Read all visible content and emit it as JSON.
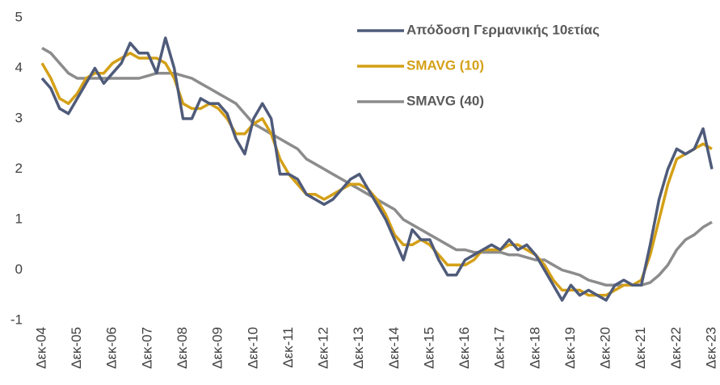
{
  "chart_data": {
    "type": "line",
    "categories": [
      "Δεκ-04",
      null,
      null,
      null,
      "Δεκ-05",
      null,
      null,
      null,
      "Δεκ-06",
      null,
      null,
      null,
      "Δεκ-07",
      null,
      null,
      null,
      "Δεκ-08",
      null,
      null,
      null,
      "Δεκ-09",
      null,
      null,
      null,
      "Δεκ-10",
      null,
      null,
      null,
      "Δεκ-11",
      null,
      null,
      null,
      "Δεκ-12",
      null,
      null,
      null,
      "Δεκ-13",
      null,
      null,
      null,
      "Δεκ-14",
      null,
      null,
      null,
      "Δεκ-15",
      null,
      null,
      null,
      "Δεκ-16",
      null,
      null,
      null,
      "Δεκ-17",
      null,
      null,
      null,
      "Δεκ-18",
      null,
      null,
      null,
      "Δεκ-19",
      null,
      null,
      null,
      "Δεκ-20",
      null,
      null,
      null,
      "Δεκ-21",
      null,
      null,
      null,
      "Δεκ-22",
      null,
      null,
      null,
      "Δεκ-23"
    ],
    "series": [
      {
        "name": "Απόδοση Γερμανικής 10ετίας",
        "color": "#4f5b7a",
        "values": [
          3.8,
          3.6,
          3.2,
          3.1,
          3.4,
          3.7,
          4.0,
          3.7,
          3.9,
          4.1,
          4.5,
          4.3,
          4.3,
          3.9,
          4.6,
          4.0,
          3.0,
          3.0,
          3.4,
          3.3,
          3.3,
          3.1,
          2.6,
          2.3,
          3.0,
          3.3,
          3.0,
          1.9,
          1.9,
          1.8,
          1.5,
          1.4,
          1.3,
          1.4,
          1.6,
          1.8,
          1.9,
          1.6,
          1.3,
          1.0,
          0.6,
          0.2,
          0.8,
          0.6,
          0.6,
          0.2,
          -0.1,
          -0.1,
          0.2,
          0.3,
          0.4,
          0.5,
          0.4,
          0.6,
          0.4,
          0.5,
          0.3,
          0.0,
          -0.3,
          -0.6,
          -0.3,
          -0.5,
          -0.4,
          -0.5,
          -0.6,
          -0.3,
          -0.2,
          -0.3,
          -0.3,
          0.5,
          1.4,
          2.0,
          2.4,
          2.3,
          2.4,
          2.8,
          2.0
        ]
      },
      {
        "name": "SMAVG (10)",
        "color": "#d4a017",
        "values": [
          4.1,
          3.8,
          3.4,
          3.3,
          3.5,
          3.8,
          3.9,
          3.9,
          4.1,
          4.2,
          4.3,
          4.2,
          4.2,
          4.2,
          4.1,
          3.8,
          3.3,
          3.2,
          3.2,
          3.3,
          3.2,
          3.0,
          2.7,
          2.7,
          2.9,
          3.0,
          2.7,
          2.2,
          1.9,
          1.7,
          1.5,
          1.5,
          1.4,
          1.5,
          1.6,
          1.7,
          1.7,
          1.6,
          1.4,
          1.1,
          0.7,
          0.5,
          0.5,
          0.6,
          0.5,
          0.3,
          0.1,
          0.1,
          0.1,
          0.2,
          0.4,
          0.4,
          0.4,
          0.5,
          0.5,
          0.4,
          0.3,
          0.1,
          -0.2,
          -0.4,
          -0.4,
          -0.4,
          -0.5,
          -0.5,
          -0.5,
          -0.4,
          -0.3,
          -0.3,
          -0.2,
          0.3,
          1.0,
          1.7,
          2.2,
          2.3,
          2.4,
          2.5,
          2.4
        ]
      },
      {
        "name": "SMAVG (40)",
        "color": "#8c8c8c",
        "values": [
          4.4,
          4.3,
          4.1,
          3.9,
          3.8,
          3.8,
          3.8,
          3.8,
          3.8,
          3.8,
          3.8,
          3.8,
          3.85,
          3.9,
          3.9,
          3.9,
          3.85,
          3.8,
          3.7,
          3.6,
          3.5,
          3.4,
          3.3,
          3.1,
          2.9,
          2.8,
          2.7,
          2.6,
          2.5,
          2.4,
          2.2,
          2.1,
          2.0,
          1.9,
          1.8,
          1.7,
          1.6,
          1.5,
          1.4,
          1.3,
          1.2,
          1.0,
          0.9,
          0.8,
          0.7,
          0.6,
          0.5,
          0.4,
          0.4,
          0.35,
          0.35,
          0.35,
          0.35,
          0.3,
          0.3,
          0.25,
          0.2,
          0.2,
          0.1,
          0.0,
          -0.05,
          -0.1,
          -0.2,
          -0.25,
          -0.3,
          -0.3,
          -0.3,
          -0.3,
          -0.3,
          -0.25,
          -0.1,
          0.1,
          0.4,
          0.6,
          0.7,
          0.85,
          0.95
        ]
      }
    ],
    "ylim": [
      -1,
      5
    ],
    "yticks": [
      -1,
      0,
      1,
      2,
      3,
      4,
      5
    ],
    "grid": false,
    "legend": "top-right"
  }
}
